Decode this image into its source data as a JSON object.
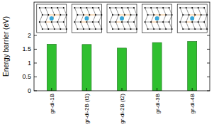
{
  "chart_data": {
    "type": "bar",
    "y_label": "Energy barrier (eV)",
    "categories": [
      "gr-di-1B",
      "gr-di-2B (t1)",
      "gr-di-2B (t2)",
      "gr-di-3B",
      "gr-di-4B"
    ],
    "values": [
      1.68,
      1.67,
      1.54,
      1.74,
      1.78
    ],
    "color": "#2fbf2f",
    "ylim": [
      0,
      3.2
    ],
    "yticks": [
      0,
      0.5,
      1,
      1.5,
      2
    ],
    "grid": false
  }
}
